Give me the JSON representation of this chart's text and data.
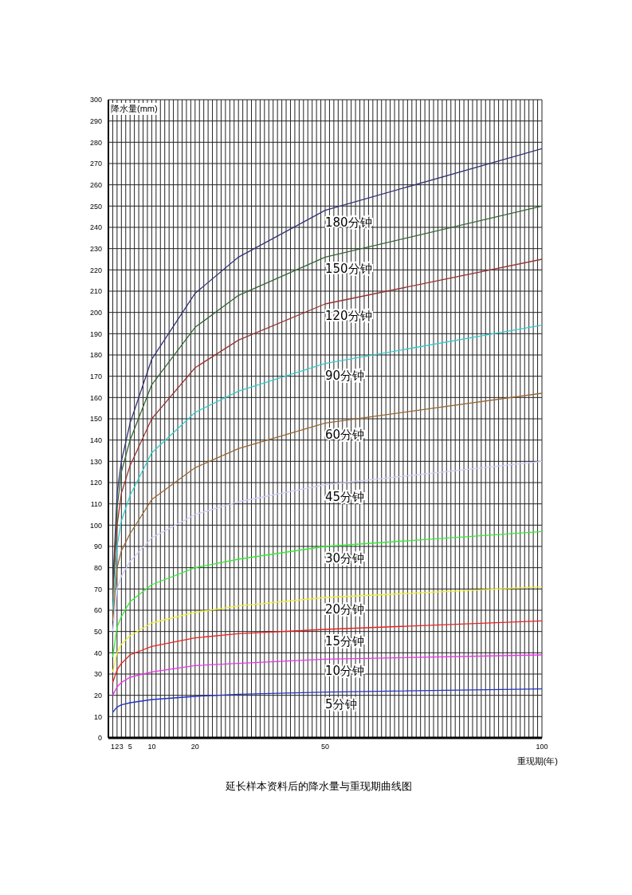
{
  "chart_data": {
    "type": "line",
    "title": "延长样本资料后的降水量与重现期曲线图",
    "xlabel": "重现期(年)",
    "ylabel": "降水量(mm)",
    "x": [
      1,
      2,
      3,
      5,
      10,
      20,
      30,
      50,
      100
    ],
    "xlim": [
      0,
      100
    ],
    "xticks": [
      1,
      2,
      3,
      5,
      10,
      20,
      50,
      100
    ],
    "ylim": [
      0,
      300
    ],
    "yticks": [
      0,
      10,
      20,
      30,
      40,
      50,
      60,
      70,
      80,
      90,
      100,
      110,
      120,
      130,
      140,
      150,
      160,
      170,
      180,
      190,
      200,
      210,
      220,
      230,
      240,
      250,
      260,
      270,
      280,
      290,
      300
    ],
    "grid": true,
    "marker": "none",
    "line_style": "solid",
    "series": [
      {
        "name": "180分钟",
        "color": "#333377",
        "values": [
          70,
          115,
          130,
          148,
          178,
          209,
          226,
          248,
          277
        ]
      },
      {
        "name": "150分钟",
        "color": "#336633",
        "values": [
          68,
          108,
          125,
          140,
          166,
          193,
          208,
          226,
          250
        ]
      },
      {
        "name": "120分钟",
        "color": "#993333",
        "values": [
          65,
          100,
          115,
          128,
          150,
          174,
          187,
          204,
          225
        ]
      },
      {
        "name": "90分钟",
        "color": "#33cccc",
        "values": [
          60,
          90,
          102,
          114,
          134,
          153,
          163,
          176,
          194
        ]
      },
      {
        "name": "60分钟",
        "color": "#996633",
        "values": [
          55,
          80,
          88,
          96,
          112,
          127,
          136,
          148,
          162
        ]
      },
      {
        "name": "45分钟",
        "color": "#ccccff",
        "values": [
          50,
          70,
          76,
          83,
          94,
          105,
          111,
          119,
          130
        ]
      },
      {
        "name": "30分钟",
        "color": "#33ee33",
        "values": [
          38,
          52,
          57,
          64,
          72,
          80,
          84,
          90,
          97
        ]
      },
      {
        "name": "20分钟",
        "color": "#eeee33",
        "values": [
          31,
          40,
          44,
          48,
          54,
          59,
          62,
          66,
          71
        ]
      },
      {
        "name": "15分钟",
        "color": "#ee2222",
        "values": [
          26,
          32,
          35,
          39,
          43,
          47,
          49,
          51,
          55
        ]
      },
      {
        "name": "10分钟",
        "color": "#ee33ee",
        "values": [
          20,
          24,
          26,
          28.5,
          31,
          34,
          35,
          37,
          39
        ]
      },
      {
        "name": "5分钟",
        "color": "#2233cc",
        "values": [
          12,
          14.5,
          15.5,
          16.5,
          18,
          19.5,
          20.5,
          21.5,
          23
        ]
      }
    ]
  }
}
